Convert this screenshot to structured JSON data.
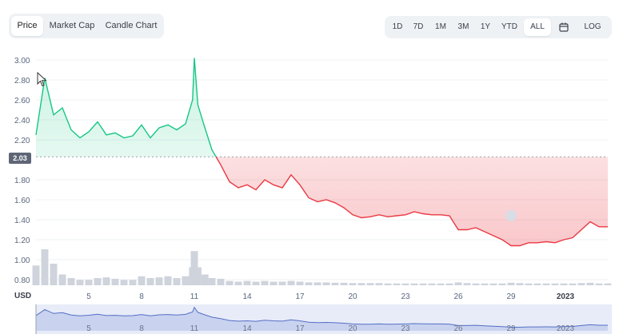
{
  "tabs_left": [
    {
      "label": "Price",
      "active": true
    },
    {
      "label": "Market Cap",
      "active": false
    },
    {
      "label": "Candle Chart",
      "active": false
    }
  ],
  "tabs_right": [
    {
      "label": "1D",
      "active": false
    },
    {
      "label": "7D",
      "active": false
    },
    {
      "label": "1M",
      "active": false
    },
    {
      "label": "3M",
      "active": false
    },
    {
      "label": "1Y",
      "active": false
    },
    {
      "label": "YTD",
      "active": false
    },
    {
      "label": "ALL",
      "active": true
    },
    {
      "label": "",
      "icon": "calendar-icon",
      "active": false
    },
    {
      "label": "LOG",
      "active": false
    }
  ],
  "y_ticks": [
    "3.00",
    "2.80",
    "2.60",
    "2.40",
    "2.20",
    "1.80",
    "1.60",
    "1.40",
    "1.20",
    "1.00",
    "0.80"
  ],
  "current_price": "2.03",
  "currency_label": "USD",
  "x_ticks": [
    "5",
    "8",
    "11",
    "14",
    "17",
    "20",
    "23",
    "26",
    "29",
    "2023"
  ],
  "colors": {
    "up": "#16c784",
    "down": "#ea3943",
    "volume": "#cfd3dc",
    "navigator": "#5470c6"
  },
  "chart_data": {
    "type": "line",
    "reference_price": 2.03,
    "ylim": [
      0.8,
      3.05
    ],
    "x": [
      2,
      2.5,
      3,
      3.5,
      4,
      4.5,
      5,
      5.5,
      6,
      6.5,
      7,
      7.5,
      8,
      8.5,
      9,
      9.5,
      10,
      10.5,
      10.9,
      11,
      11.2,
      11.6,
      12,
      12.5,
      13,
      13.5,
      14,
      14.5,
      15,
      15.5,
      16,
      16.5,
      17,
      17.5,
      18,
      18.5,
      19,
      19.5,
      20,
      20.5,
      21,
      21.5,
      22,
      22.5,
      23,
      23.5,
      24,
      24.5,
      25,
      25.5,
      26,
      26.5,
      27,
      27.5,
      28,
      28.5,
      29,
      29.5,
      30,
      30.5,
      31,
      31.5,
      32,
      32.5,
      33,
      33.5,
      34,
      34.5
    ],
    "y": [
      2.25,
      2.82,
      2.45,
      2.52,
      2.3,
      2.22,
      2.28,
      2.38,
      2.25,
      2.27,
      2.22,
      2.24,
      2.35,
      2.22,
      2.32,
      2.35,
      2.3,
      2.36,
      2.6,
      3.02,
      2.55,
      2.32,
      2.1,
      1.95,
      1.78,
      1.72,
      1.75,
      1.7,
      1.8,
      1.75,
      1.72,
      1.85,
      1.75,
      1.62,
      1.58,
      1.6,
      1.57,
      1.52,
      1.45,
      1.42,
      1.43,
      1.45,
      1.43,
      1.44,
      1.45,
      1.48,
      1.46,
      1.45,
      1.45,
      1.44,
      1.3,
      1.3,
      1.32,
      1.28,
      1.24,
      1.2,
      1.14,
      1.14,
      1.17,
      1.17,
      1.18,
      1.17,
      1.2,
      1.22,
      1.3,
      1.38,
      1.33,
      1.33
    ],
    "volume": [
      0.55,
      1.0,
      0.6,
      0.3,
      0.2,
      0.15,
      0.15,
      0.2,
      0.22,
      0.18,
      0.15,
      0.15,
      0.25,
      0.2,
      0.22,
      0.25,
      0.2,
      0.25,
      0.5,
      0.95,
      0.5,
      0.3,
      0.2,
      0.18,
      0.12,
      0.1,
      0.12,
      0.1,
      0.12,
      0.1,
      0.1,
      0.12,
      0.1,
      0.08,
      0.08,
      0.08,
      0.07,
      0.07,
      0.06,
      0.06,
      0.06,
      0.06,
      0.05,
      0.05,
      0.05,
      0.05,
      0.05,
      0.05,
      0.05,
      0.05,
      0.08,
      0.06,
      0.05,
      0.05,
      0.05,
      0.05,
      0.07,
      0.06,
      0.05,
      0.05,
      0.05,
      0.05,
      0.05,
      0.05,
      0.06,
      0.07,
      0.05,
      0.05
    ]
  }
}
